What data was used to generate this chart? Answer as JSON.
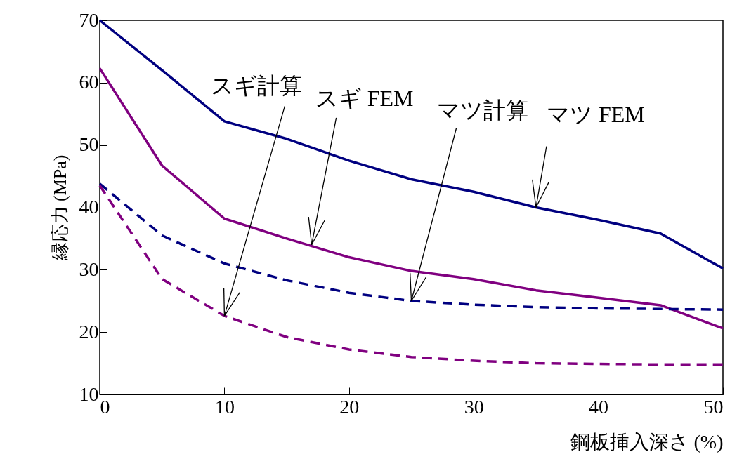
{
  "chart_data": {
    "type": "line",
    "xlabel": "鋼板挿入深さ (%)",
    "ylabel": "縁応力 (MPa)",
    "x": [
      0,
      5,
      10,
      15,
      20,
      25,
      30,
      35,
      40,
      45,
      50
    ],
    "series": [
      {
        "color": "#000080",
        "line_style": "solid",
        "values": [
          70,
          62,
          53.8,
          51,
          47.5,
          44.5,
          42.5,
          40,
          38,
          35.8,
          30.2
        ]
      },
      {
        "color": "#800080",
        "line_style": "solid",
        "values": [
          62.3,
          46.7,
          38.2,
          35,
          32,
          29.8,
          28.5,
          26.7,
          25.5,
          24.3,
          20.6
        ]
      },
      {
        "color": "#000080",
        "line_style": "dashed",
        "values": [
          43.8,
          35.5,
          31,
          28.3,
          26.3,
          25,
          24.4,
          24,
          23.8,
          23.7,
          23.6
        ]
      },
      {
        "color": "#800080",
        "line_style": "dashed",
        "values": [
          43.5,
          28.5,
          22.6,
          19.2,
          17.2,
          16,
          15.4,
          15,
          14.9,
          14.8,
          14.8
        ]
      }
    ],
    "annotations": [
      {
        "text": "スギ計算",
        "x": 10,
        "y": 22.6
      },
      {
        "text": "スギ FEM",
        "x": 17,
        "y": 34
      },
      {
        "text": "マツ計算",
        "x": 25,
        "y": 25
      },
      {
        "text": "マツ FEM",
        "x": 35,
        "y": 40
      }
    ],
    "xlim": [
      0,
      50
    ],
    "ylim": [
      10,
      70
    ],
    "xticks": [
      0,
      10,
      20,
      30,
      40,
      50
    ],
    "yticks": [
      10,
      20,
      30,
      40,
      50,
      60,
      70
    ],
    "grid": false,
    "marker": "none"
  }
}
